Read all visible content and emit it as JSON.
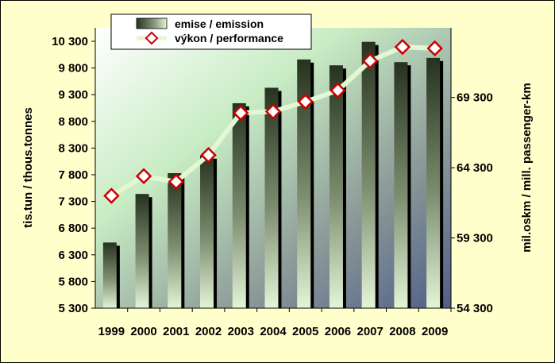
{
  "chart_data": {
    "type": "bar",
    "categories": [
      "1999",
      "2000",
      "2001",
      "2002",
      "2003",
      "2004",
      "2005",
      "2006",
      "2007",
      "2008",
      "2009"
    ],
    "series": [
      {
        "name": "emise / emission",
        "type": "bar",
        "axis": "left",
        "values": [
          6530,
          7440,
          7830,
          8160,
          9140,
          9430,
          9960,
          9850,
          10290,
          9910,
          9990
        ]
      },
      {
        "name": "výkon / performance",
        "type": "line",
        "axis": "right",
        "values": [
          62300,
          63700,
          63300,
          65200,
          68200,
          68300,
          69000,
          69800,
          71900,
          72900,
          72800
        ]
      }
    ],
    "y_left": {
      "label": "tis.tun / thous.tonnes",
      "ylim": [
        5300,
        10300
      ],
      "ticks": [
        "5 300",
        "5 800",
        "6 300",
        "6 800",
        "7 300",
        "7 800",
        "8 300",
        "8 800",
        "9 300",
        "9 800",
        "10 300"
      ]
    },
    "y_right": {
      "label": "mil.oskm / mill. passenger-km",
      "ylim": [
        54300,
        73300
      ],
      "ticks": [
        "54 300",
        "59 300",
        "64 300",
        "69 300"
      ]
    },
    "legend": {
      "position": "top-center"
    },
    "colors": {
      "bar_dark": "#26321f",
      "bar_light": "#e3f5d6",
      "line": "#e2f8d4",
      "marker_border": "#cc0000",
      "marker_fill": "#ffffff",
      "frame": "#ffffcc"
    }
  }
}
